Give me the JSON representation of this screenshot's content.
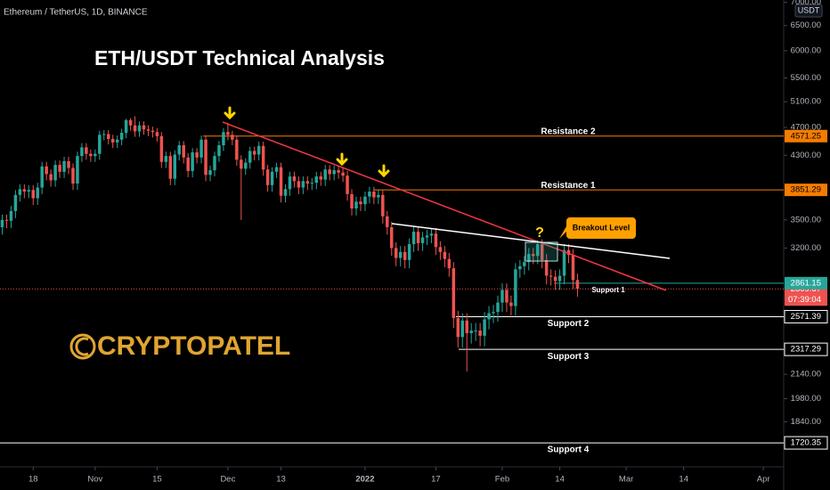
{
  "chart_data": {
    "type": "candlestick",
    "symbol": "Ethereum / TetherUS, 1D, BINANCE",
    "title": "ETH/USDT Technical Analysis",
    "logo": "CRYPTOPATEL",
    "currency": "USDT",
    "countdown": "07:39:04",
    "annotations": {
      "question": "?",
      "breakout": "Breakout Level"
    },
    "up_color": "#26a69a",
    "down_color": "#ef5350",
    "log_scale": true,
    "grid": false,
    "xlim": [
      -0.5,
      176.6
    ],
    "xticks": [
      {
        "value": 7,
        "label": "18"
      },
      {
        "value": 21,
        "label": "Nov"
      },
      {
        "value": 35,
        "label": "15"
      },
      {
        "value": 51,
        "label": "Dec"
      },
      {
        "value": 63,
        "label": "13"
      },
      {
        "value": 82,
        "label": "2022"
      },
      {
        "value": 98,
        "label": "17"
      },
      {
        "value": 113,
        "label": "Feb"
      },
      {
        "value": 126,
        "label": "14"
      },
      {
        "value": 141,
        "label": "Mar"
      },
      {
        "value": 154,
        "label": "14"
      },
      {
        "value": 172,
        "label": "Apr"
      }
    ],
    "ylim": [
      1612,
      7052
    ],
    "yticks": [
      {
        "value": 7000,
        "label": "7000.00"
      },
      {
        "value": 6500,
        "label": "6500.00"
      },
      {
        "value": 6000,
        "label": "6000.00"
      },
      {
        "value": 5500,
        "label": "5500.00"
      },
      {
        "value": 5100,
        "label": "5100.00"
      },
      {
        "value": 4700,
        "label": "4700.00"
      },
      {
        "value": 4300,
        "label": "4300.00"
      },
      {
        "value": 3500,
        "label": "3500.00"
      },
      {
        "value": 3200,
        "label": "3200.00"
      },
      {
        "value": 2140,
        "label": "2140.00"
      },
      {
        "value": 1980,
        "label": "1980.00"
      },
      {
        "value": 1840,
        "label": "1840.00"
      }
    ],
    "open": [
      3420,
      3500,
      3490,
      3600,
      3790,
      3860,
      3830,
      3850,
      3750,
      3880,
      4150,
      4050,
      3970,
      4170,
      4080,
      4220,
      4130,
      3930,
      4290,
      4410,
      4320,
      4290,
      4320,
      4590,
      4600,
      4530,
      4480,
      4520,
      4620,
      4810,
      4730,
      4640,
      4730,
      4670,
      4650,
      4630,
      4570,
      4210,
      4290,
      3990,
      4310,
      4440,
      4270,
      4090,
      4340,
      4270,
      4520,
      4040,
      4100,
      4290,
      4440,
      4630,
      4590,
      4520,
      4240,
      4120,
      4200,
      4360,
      4310,
      4430,
      4110,
      3910,
      4080,
      4140,
      3780,
      3860,
      4020,
      3960,
      3880,
      3960,
      3930,
      3940,
      4020,
      3980,
      4110,
      4050,
      4100,
      4070,
      4030,
      3800,
      3630,
      3710,
      3680,
      3770,
      3830,
      3760,
      3790,
      3540,
      3420,
      3200,
      3100,
      3160,
      3080,
      3240,
      3370,
      3250,
      3310,
      3330,
      3350,
      3210,
      3160,
      3090,
      3000,
      2560,
      2410,
      2540,
      2440,
      2460,
      2460,
      2420,
      2550,
      2600,
      2610,
      2690,
      2800,
      2690,
      2660,
      2990,
      3020,
      3060,
      3140,
      3120,
      3240,
      3080,
      2930,
      2920,
      2880,
      2930,
      3180,
      3130,
      2890
    ],
    "high": [
      3560,
      3560,
      3660,
      3850,
      3920,
      3920,
      3910,
      3910,
      3940,
      4210,
      4210,
      4110,
      4230,
      4230,
      4280,
      4280,
      4190,
      4350,
      4470,
      4470,
      4380,
      4380,
      4650,
      4660,
      4660,
      4590,
      4580,
      4680,
      4830,
      4840,
      4868,
      4790,
      4790,
      4730,
      4710,
      4690,
      4630,
      4350,
      4350,
      4370,
      4500,
      4500,
      4330,
      4400,
      4400,
      4580,
      4580,
      4160,
      4350,
      4500,
      4690,
      4770,
      4650,
      4580,
      4300,
      4260,
      4420,
      4420,
      4490,
      4490,
      4170,
      4140,
      4200,
      4200,
      3920,
      4080,
      4080,
      4020,
      4020,
      4020,
      4000,
      4080,
      4080,
      4170,
      4170,
      4160,
      4160,
      4130,
      4090,
      3860,
      3770,
      3770,
      3830,
      3890,
      3890,
      3850,
      3850,
      3600,
      3480,
      3260,
      3220,
      3220,
      3300,
      3430,
      3430,
      3370,
      3390,
      3410,
      3410,
      3270,
      3220,
      3150,
      3060,
      2620,
      2600,
      2600,
      2520,
      2520,
      2520,
      2610,
      2660,
      2670,
      2750,
      2860,
      2860,
      2750,
      3050,
      3080,
      3120,
      3200,
      3200,
      3280,
      3290,
      3140,
      2990,
      2980,
      2990,
      3240,
      3240,
      3190,
      2950
    ],
    "low": [
      3340,
      3410,
      3410,
      3520,
      3710,
      3750,
      3750,
      3670,
      3670,
      3800,
      3970,
      3890,
      3890,
      4000,
      4000,
      4050,
      3850,
      3850,
      4210,
      4240,
      4210,
      4210,
      4240,
      4510,
      4450,
      4400,
      4400,
      4440,
      4540,
      4650,
      4560,
      4560,
      4590,
      4570,
      4550,
      4490,
      4130,
      4130,
      3910,
      3910,
      4230,
      4190,
      4010,
      4010,
      4190,
      4190,
      3960,
      3960,
      4020,
      4210,
      4360,
      4510,
      4440,
      4160,
      3500,
      4040,
      4120,
      4230,
      4230,
      4030,
      3830,
      3830,
      4000,
      3700,
      3700,
      3780,
      3880,
      3800,
      3800,
      3850,
      3850,
      3860,
      3900,
      3900,
      3970,
      3970,
      3990,
      3950,
      3720,
      3550,
      3550,
      3600,
      3600,
      3690,
      3680,
      3680,
      3460,
      3340,
      3120,
      3020,
      3020,
      3000,
      3000,
      3160,
      3170,
      3170,
      3230,
      3250,
      3130,
      3080,
      3010,
      2920,
      2480,
      2330,
      2330,
      2160,
      2360,
      2380,
      2340,
      2340,
      2470,
      2520,
      2530,
      2610,
      2610,
      2580,
      2580,
      2910,
      2940,
      2980,
      3040,
      3040,
      3000,
      2850,
      2840,
      2800,
      2800,
      2850,
      3050,
      2810,
      2740
    ],
    "close": [
      3500,
      3490,
      3600,
      3790,
      3860,
      3830,
      3850,
      3750,
      3880,
      4150,
      4050,
      3970,
      4170,
      4080,
      4220,
      4130,
      3930,
      4290,
      4410,
      4320,
      4290,
      4320,
      4590,
      4600,
      4530,
      4480,
      4520,
      4620,
      4810,
      4730,
      4640,
      4730,
      4670,
      4650,
      4630,
      4570,
      4210,
      4290,
      3990,
      4310,
      4440,
      4270,
      4090,
      4340,
      4270,
      4520,
      4040,
      4100,
      4290,
      4440,
      4630,
      4590,
      4520,
      4240,
      4120,
      4200,
      4360,
      4310,
      4430,
      4110,
      3910,
      4080,
      4140,
      3780,
      3860,
      4020,
      3960,
      3880,
      3960,
      3930,
      3940,
      4020,
      3980,
      4110,
      4050,
      4100,
      4070,
      4030,
      3800,
      3630,
      3710,
      3680,
      3770,
      3830,
      3760,
      3790,
      3540,
      3420,
      3200,
      3100,
      3160,
      3080,
      3240,
      3370,
      3250,
      3310,
      3330,
      3350,
      3210,
      3160,
      3090,
      3000,
      2560,
      2410,
      2540,
      2440,
      2460,
      2460,
      2420,
      2550,
      2600,
      2610,
      2690,
      2800,
      2690,
      2660,
      2990,
      3020,
      3060,
      3140,
      3120,
      3240,
      3080,
      2930,
      2920,
      2880,
      2930,
      3180,
      3130,
      2890,
      2809.67
    ],
    "levels": [
      {
        "name": "Resistance 2",
        "value": 4571.25,
        "color": "#f57c00"
      },
      {
        "name": "Resistance 1",
        "value": 3851.29,
        "color": "#f57c00"
      },
      {
        "name": "Support 1",
        "value": 2861.15,
        "color": "#26a69a"
      },
      {
        "name": "Support 2",
        "value": 2571.39,
        "color": "#ffffff"
      },
      {
        "name": "Support 3",
        "value": 2317.29,
        "color": "#ffffff"
      },
      {
        "name": "Support 4",
        "value": 1720.35,
        "color": "#ffffff"
      }
    ]
  }
}
